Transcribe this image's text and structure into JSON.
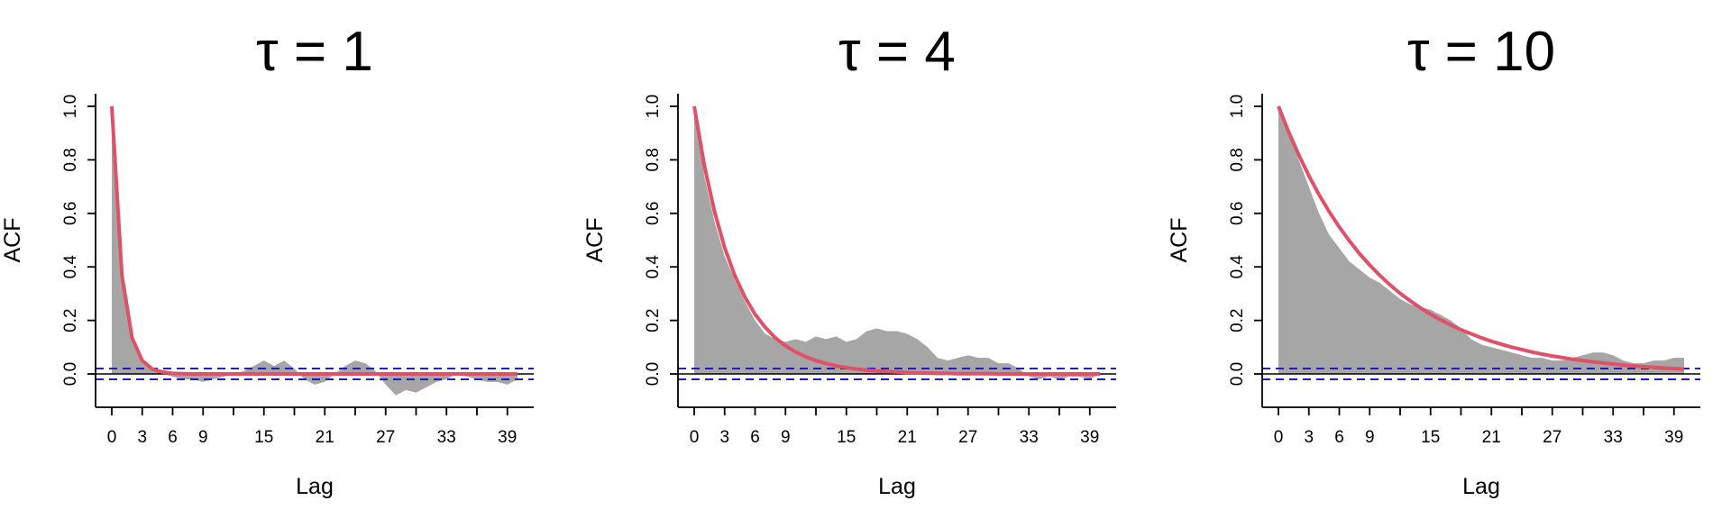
{
  "chart_data": [
    {
      "type": "area",
      "title": "τ = 1",
      "xlabel": "Lag",
      "ylabel": "ACF",
      "xlim": [
        0,
        40
      ],
      "ylim": [
        0,
        1
      ],
      "xticks": [
        "0",
        "3",
        "6",
        "9",
        "15",
        "21",
        "27",
        "33",
        "39"
      ],
      "yticks": [
        "0.0",
        "0.2",
        "0.4",
        "0.6",
        "0.8",
        "1.0"
      ],
      "ci": 0.02,
      "series": [
        {
          "x": [
            0,
            1,
            2,
            3,
            4,
            5,
            6,
            7,
            8,
            9,
            10,
            11,
            12,
            13,
            14,
            15,
            16,
            17,
            18,
            19,
            20,
            21,
            22,
            23,
            24,
            25,
            26,
            27,
            28,
            29,
            30,
            31,
            32,
            33,
            34,
            35,
            36,
            37,
            38,
            39,
            40
          ],
          "values": [
            1.0,
            0.34,
            0.14,
            0.05,
            0.02,
            0.0,
            -0.01,
            -0.02,
            -0.02,
            -0.03,
            -0.02,
            -0.01,
            0.0,
            0.01,
            0.03,
            0.05,
            0.03,
            0.05,
            0.02,
            -0.02,
            -0.04,
            -0.03,
            0.0,
            0.03,
            0.05,
            0.04,
            0.01,
            -0.04,
            -0.08,
            -0.06,
            -0.07,
            -0.05,
            -0.03,
            -0.02,
            0.0,
            -0.01,
            -0.02,
            -0.03,
            -0.03,
            -0.04,
            -0.02
          ]
        },
        {
          "x": [
            0,
            1,
            2,
            3,
            4,
            5,
            6,
            7,
            8,
            9,
            10,
            11,
            12,
            13,
            14,
            15,
            16,
            17,
            18,
            19,
            20,
            21,
            22,
            23,
            24,
            25,
            26,
            27,
            28,
            29,
            30,
            31,
            32,
            33,
            34,
            35,
            36,
            37,
            38,
            39,
            40
          ],
          "values": [
            1.0,
            0.368,
            0.135,
            0.05,
            0.018,
            0.007,
            0.002,
            0.001,
            0.0,
            0.0,
            0.0,
            0.0,
            0.0,
            0.0,
            0.0,
            0.0,
            0.0,
            0.0,
            0.0,
            0.0,
            0.0,
            0.0,
            0.0,
            0.0,
            0.0,
            0.0,
            0.0,
            0.0,
            0.0,
            0.0,
            0.0,
            0.0,
            0.0,
            0.0,
            0.0,
            0.0,
            0.0,
            0.0,
            0.0,
            0.0,
            0.0
          ]
        }
      ]
    },
    {
      "type": "area",
      "title": "τ = 4",
      "xlabel": "Lag",
      "ylabel": "ACF",
      "xlim": [
        0,
        40
      ],
      "ylim": [
        0,
        1
      ],
      "xticks": [
        "0",
        "3",
        "6",
        "9",
        "15",
        "21",
        "27",
        "33",
        "39"
      ],
      "yticks": [
        "0.0",
        "0.2",
        "0.4",
        "0.6",
        "0.8",
        "1.0"
      ],
      "ci": 0.02,
      "series": [
        {
          "x": [
            0,
            1,
            2,
            3,
            4,
            5,
            6,
            7,
            8,
            9,
            10,
            11,
            12,
            13,
            14,
            15,
            16,
            17,
            18,
            19,
            20,
            21,
            22,
            23,
            24,
            25,
            26,
            27,
            28,
            29,
            30,
            31,
            32,
            33,
            34,
            35,
            36,
            37,
            38,
            39,
            40
          ],
          "values": [
            1.0,
            0.74,
            0.57,
            0.44,
            0.35,
            0.27,
            0.2,
            0.15,
            0.13,
            0.12,
            0.13,
            0.12,
            0.14,
            0.13,
            0.14,
            0.12,
            0.13,
            0.16,
            0.17,
            0.16,
            0.16,
            0.15,
            0.13,
            0.1,
            0.06,
            0.05,
            0.06,
            0.07,
            0.06,
            0.06,
            0.04,
            0.04,
            0.02,
            -0.01,
            -0.02,
            -0.01,
            -0.02,
            -0.01,
            -0.01,
            -0.02,
            0.0
          ]
        },
        {
          "x": [
            0,
            1,
            2,
            3,
            4,
            5,
            6,
            7,
            8,
            9,
            10,
            11,
            12,
            13,
            14,
            15,
            16,
            17,
            18,
            19,
            20,
            21,
            22,
            23,
            24,
            25,
            26,
            27,
            28,
            29,
            30,
            31,
            32,
            33,
            34,
            35,
            36,
            37,
            38,
            39,
            40
          ],
          "values": [
            1.0,
            0.779,
            0.607,
            0.472,
            0.368,
            0.287,
            0.223,
            0.174,
            0.135,
            0.105,
            0.082,
            0.064,
            0.05,
            0.039,
            0.03,
            0.024,
            0.018,
            0.014,
            0.011,
            0.009,
            0.007,
            0.005,
            0.004,
            0.003,
            0.002,
            0.002,
            0.001,
            0.001,
            0.001,
            0.001,
            0.0,
            0.0,
            0.0,
            0.0,
            0.0,
            0.0,
            0.0,
            0.0,
            0.0,
            0.0,
            0.0
          ]
        }
      ]
    },
    {
      "type": "area",
      "title": "τ = 10",
      "xlabel": "Lag",
      "ylabel": "ACF",
      "xlim": [
        0,
        40
      ],
      "ylim": [
        0,
        1
      ],
      "xticks": [
        "0",
        "3",
        "6",
        "9",
        "15",
        "21",
        "27",
        "33",
        "39"
      ],
      "yticks": [
        "0.0",
        "0.2",
        "0.4",
        "0.6",
        "0.8",
        "1.0"
      ],
      "ci": 0.02,
      "series": [
        {
          "x": [
            0,
            1,
            2,
            3,
            4,
            5,
            6,
            7,
            8,
            9,
            10,
            11,
            12,
            13,
            14,
            15,
            16,
            17,
            18,
            19,
            20,
            21,
            22,
            23,
            24,
            25,
            26,
            27,
            28,
            29,
            30,
            31,
            32,
            33,
            34,
            35,
            36,
            37,
            38,
            39,
            40
          ],
          "values": [
            1.0,
            0.9,
            0.8,
            0.7,
            0.6,
            0.52,
            0.47,
            0.42,
            0.39,
            0.36,
            0.34,
            0.31,
            0.28,
            0.26,
            0.25,
            0.24,
            0.22,
            0.2,
            0.17,
            0.13,
            0.11,
            0.1,
            0.09,
            0.08,
            0.07,
            0.06,
            0.06,
            0.05,
            0.05,
            0.06,
            0.07,
            0.08,
            0.08,
            0.07,
            0.05,
            0.04,
            0.04,
            0.05,
            0.05,
            0.06,
            0.06
          ]
        },
        {
          "x": [
            0,
            1,
            2,
            3,
            4,
            5,
            6,
            7,
            8,
            9,
            10,
            11,
            12,
            13,
            14,
            15,
            16,
            17,
            18,
            19,
            20,
            21,
            22,
            23,
            24,
            25,
            26,
            27,
            28,
            29,
            30,
            31,
            32,
            33,
            34,
            35,
            36,
            37,
            38,
            39,
            40
          ],
          "values": [
            1.0,
            0.905,
            0.819,
            0.741,
            0.67,
            0.607,
            0.549,
            0.497,
            0.449,
            0.407,
            0.368,
            0.333,
            0.301,
            0.273,
            0.247,
            0.223,
            0.202,
            0.183,
            0.165,
            0.15,
            0.135,
            0.122,
            0.111,
            0.1,
            0.091,
            0.082,
            0.074,
            0.067,
            0.061,
            0.055,
            0.05,
            0.045,
            0.041,
            0.037,
            0.033,
            0.03,
            0.027,
            0.025,
            0.022,
            0.02,
            0.018
          ]
        }
      ]
    }
  ],
  "colors": {
    "acf_fill": "#a6a6a6",
    "model_line": "#e05067",
    "ci_line": "#1c1cc8",
    "axis": "#000000"
  }
}
